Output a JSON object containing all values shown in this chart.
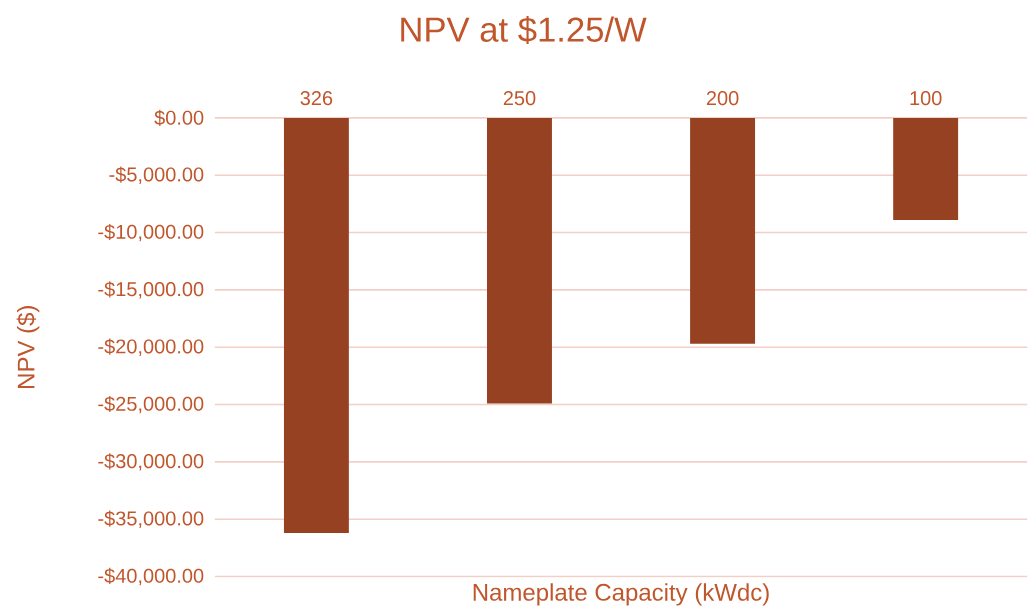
{
  "chart_data": {
    "type": "bar",
    "title": "NPV at $1.25/W",
    "xlabel": "Nameplate Capacity (kWdc)",
    "ylabel": "NPV ($)",
    "categories": [
      "326",
      "250",
      "200",
      "100"
    ],
    "values": [
      -36200,
      -24900,
      -19700,
      -8900
    ],
    "color": "#964122",
    "ylim": [
      -40000,
      0
    ],
    "yticks": [
      {
        "value": 0,
        "label": "$0.00"
      },
      {
        "value": -5000,
        "label": "-$5,000.00"
      },
      {
        "value": -10000,
        "label": "-$10,000.00"
      },
      {
        "value": -15000,
        "label": "-$15,000.00"
      },
      {
        "value": -20000,
        "label": "-$20,000.00"
      },
      {
        "value": -25000,
        "label": "-$25,000.00"
      },
      {
        "value": -30000,
        "label": "-$30,000.00"
      },
      {
        "value": -35000,
        "label": "-$35,000.00"
      },
      {
        "value": -40000,
        "label": "-$40,000.00"
      }
    ],
    "grid": "y"
  }
}
